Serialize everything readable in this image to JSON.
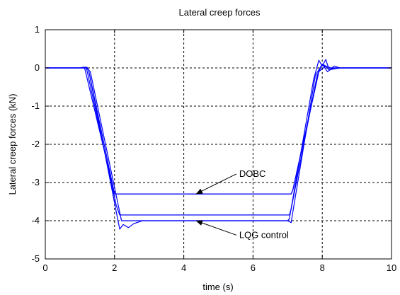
{
  "chart_data": {
    "type": "line",
    "title": "Lateral creep forces",
    "xlabel": "time (s)",
    "ylabel": "Lateral creep forces (kN)",
    "xlim": [
      0,
      10
    ],
    "ylim": [
      -5,
      1
    ],
    "xticks": [
      "0",
      "2",
      "4",
      "6",
      "8",
      "10"
    ],
    "yticks": [
      "1",
      "0",
      "-1",
      "-2",
      "-3",
      "-4",
      "-5"
    ],
    "grid": true,
    "line_color": "#0000ff",
    "series": [
      {
        "x": [
          0,
          1.0,
          1.1,
          1.15,
          2.0,
          7.1,
          7.15,
          7.9,
          8.1,
          8.3,
          8.6,
          10
        ],
        "y": [
          0,
          0,
          0.02,
          -0.05,
          -3.3,
          -3.3,
          -3.2,
          -0.1,
          0.05,
          -0.02,
          0,
          0
        ]
      },
      {
        "x": [
          0,
          1.05,
          1.15,
          1.2,
          2.05,
          2.15,
          7.05,
          7.1,
          7.85,
          8.0,
          8.2,
          8.5,
          10
        ],
        "y": [
          0,
          0,
          0.02,
          -0.05,
          -3.6,
          -3.85,
          -3.85,
          -3.7,
          -0.2,
          0.1,
          -0.05,
          0,
          0
        ]
      },
      {
        "x": [
          0,
          1.1,
          1.2,
          1.25,
          2.1,
          2.15,
          2.25,
          2.4,
          2.55,
          2.8,
          7.0,
          7.05,
          7.75,
          7.9,
          8.0,
          8.1,
          8.2,
          8.35,
          8.5,
          10
        ],
        "y": [
          0,
          0,
          0.02,
          -0.05,
          -4.0,
          -4.22,
          -4.1,
          -4.18,
          -4.08,
          -4.0,
          -4.0,
          -3.95,
          -0.3,
          0.2,
          0.05,
          0.22,
          -0.05,
          0.05,
          0,
          0
        ]
      },
      {
        "x": [
          0,
          1.15,
          1.25,
          2.0,
          2.1,
          7.1,
          7.15,
          7.9,
          8.0,
          8.15,
          8.3,
          10
        ],
        "y": [
          0,
          0,
          -0.05,
          -3.3,
          -3.3,
          -3.3,
          -3.2,
          -0.1,
          0.1,
          -0.1,
          0,
          0
        ]
      },
      {
        "x": [
          0,
          1.2,
          1.3,
          2.2,
          7.0,
          7.1,
          7.8,
          8.0,
          8.2,
          10
        ],
        "y": [
          0,
          0,
          -0.1,
          -4.0,
          -4.0,
          -4.05,
          -0.2,
          0.1,
          0,
          0
        ]
      }
    ],
    "annotations": [
      {
        "text": "DOBC",
        "x": 5.6,
        "y": -2.85,
        "arrow_to_x": 4.35,
        "arrow_to_y": -3.3
      },
      {
        "text": "LQG control",
        "x": 5.6,
        "y": -4.45,
        "arrow_to_x": 4.35,
        "arrow_to_y": -4.0
      }
    ]
  }
}
